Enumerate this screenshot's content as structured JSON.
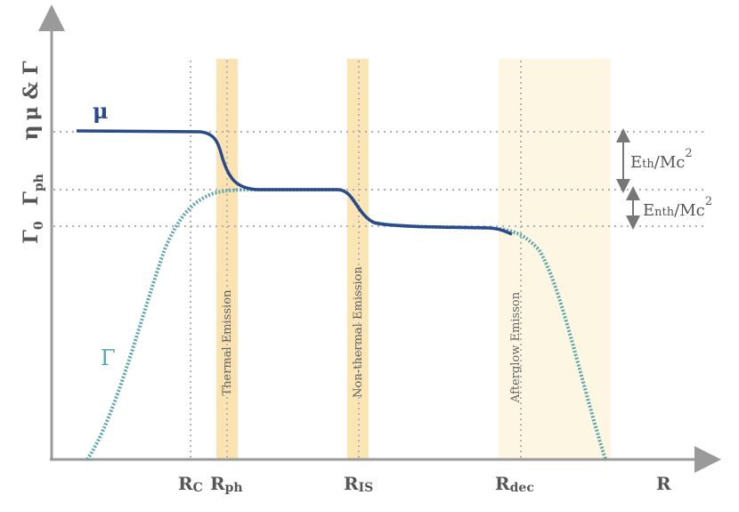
{
  "axes": {
    "x_label": "R",
    "y_label": "μ & Γ"
  },
  "y_levels": {
    "eta": "η",
    "gamma_ph": "Γ",
    "gamma_ph_sub": "ph",
    "gamma_0": "Γ",
    "gamma_0_sub": "0"
  },
  "x_markers": {
    "rc": "R",
    "rc_sub": "C",
    "rph": "R",
    "rph_sub": "ph",
    "ris": "R",
    "ris_sub": "IS",
    "rdec": "R",
    "rdec_sub": "dec"
  },
  "curves": {
    "mu_label": "μ",
    "gamma_label": "Γ",
    "mu_color": "#2b4a8b",
    "gamma_color": "#5aa6ad"
  },
  "bands": {
    "thermal": "Thermal Emission",
    "nonthermal": "Non-thermal Emission",
    "afterglow": "Afterglow Emisson",
    "thermal_color": "#fbe0a8",
    "afterglow_color": "#fdf6e3"
  },
  "energies": {
    "eth_main": "E",
    "eth_sub": "th",
    "eth_tail": "/Mc",
    "eth_sup": "2",
    "enth_main": "E",
    "enth_sub": "nth",
    "enth_tail": "/Mc",
    "enth_sup": "2"
  }
}
